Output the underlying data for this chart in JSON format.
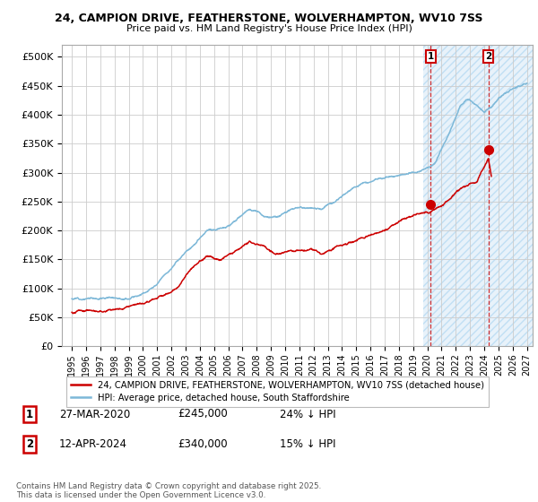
{
  "title_line1": "24, CAMPION DRIVE, FEATHERSTONE, WOLVERHAMPTON, WV10 7SS",
  "title_line2": "Price paid vs. HM Land Registry's House Price Index (HPI)",
  "hpi_color": "#7db8d8",
  "price_color": "#cc0000",
  "background_color": "#ffffff",
  "plot_bg_color": "#ffffff",
  "grid_color": "#cccccc",
  "ylim": [
    0,
    520000
  ],
  "yticks": [
    0,
    50000,
    100000,
    150000,
    200000,
    250000,
    300000,
    350000,
    400000,
    450000,
    500000
  ],
  "xlabel_years": [
    1995,
    1996,
    1997,
    1998,
    1999,
    2000,
    2001,
    2002,
    2003,
    2004,
    2005,
    2006,
    2007,
    2008,
    2009,
    2010,
    2011,
    2012,
    2013,
    2014,
    2015,
    2016,
    2017,
    2018,
    2019,
    2020,
    2021,
    2022,
    2023,
    2024,
    2025,
    2026,
    2027
  ],
  "annotation1": {
    "num": "1",
    "date": "27-MAR-2020",
    "price": "£245,000",
    "pct": "24% ↓ HPI",
    "x_year": 2020.23
  },
  "annotation2": {
    "num": "2",
    "date": "12-APR-2024",
    "price": "£340,000",
    "pct": "15% ↓ HPI",
    "x_year": 2024.28
  },
  "t1_price": 245000,
  "t2_price": 340000,
  "legend_line1": "24, CAMPION DRIVE, FEATHERSTONE, WOLVERHAMPTON, WV10 7SS (detached house)",
  "legend_line2": "HPI: Average price, detached house, South Staffordshire",
  "footer": "Contains HM Land Registry data © Crown copyright and database right 2025.\nThis data is licensed under the Open Government Licence v3.0.",
  "shaded_region_start": 2019.7,
  "shaded_region_end": 2027.4,
  "xlim": [
    1994.3,
    2027.4
  ]
}
